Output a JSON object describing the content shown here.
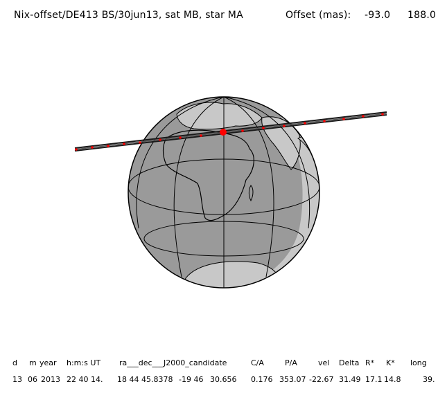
{
  "header": {
    "title": "Nix-offset/DE413 BS/30jun13, sat MB, star MA",
    "offset_label": "Offset (mas):",
    "offset_x": "-93.0",
    "offset_y": "188.0"
  },
  "colors": {
    "ocean_day": "#9a9a9a",
    "ocean_night": "#c8c8c8",
    "land_outline": "#000000",
    "track": "#1a1a1a",
    "track_marker": "#ff0000"
  },
  "table": {
    "headers": [
      "d",
      "m",
      "year",
      "h:m:s UT",
      "ra___dec___J2000_candidate",
      "C/A",
      "P/A",
      "vel",
      "Delta",
      "R*",
      "K*",
      "long"
    ],
    "values": [
      "13",
      "06",
      "2013",
      "22 40 14.",
      "18 44 45.8378",
      "-19 46",
      "30.656",
      "0.176",
      "353.07",
      "-22.67",
      "31.49",
      "17.1",
      "14.8",
      "39."
    ]
  }
}
